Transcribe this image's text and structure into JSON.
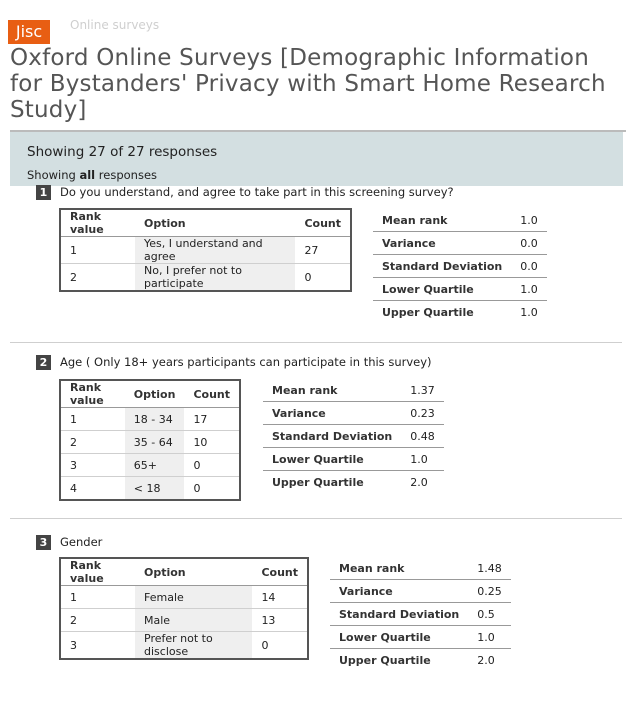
{
  "header": {
    "logo": "Jisc",
    "site_name": "Online surveys",
    "title": "Oxford Online Surveys [Demographic Information for Bystanders' Privacy with Smart Home Research Study]"
  },
  "summary": {
    "showing": "Showing 27 of 27 responses",
    "filter_prefix": "Showing ",
    "filter_bold": "all",
    "filter_suffix": " responses"
  },
  "questions": [
    {
      "num": "1",
      "text": "Do you understand, and agree to take part in this screening survey?",
      "headers": [
        "Rank value",
        "Option",
        "Count"
      ],
      "rows": [
        {
          "rank": "1",
          "option": "Yes, I understand and agree",
          "count": "27"
        },
        {
          "rank": "2",
          "option": "No, I prefer not to participate",
          "count": "0"
        }
      ],
      "stats": [
        {
          "label": "Mean rank",
          "value": "1.0"
        },
        {
          "label": "Variance",
          "value": "0.0"
        },
        {
          "label": "Standard Deviation",
          "value": "0.0"
        },
        {
          "label": "Lower Quartile",
          "value": "1.0"
        },
        {
          "label": "Upper Quartile",
          "value": "1.0"
        }
      ]
    },
    {
      "num": "2",
      "text": "Age ( Only 18+ years participants can participate in this survey)",
      "headers": [
        "Rank value",
        "Option",
        "Count"
      ],
      "rows": [
        {
          "rank": "1",
          "option": "18 - 34",
          "count": "17"
        },
        {
          "rank": "2",
          "option": "35 - 64",
          "count": "10"
        },
        {
          "rank": "3",
          "option": "65+",
          "count": "0"
        },
        {
          "rank": "4",
          "option": "< 18",
          "count": "0"
        }
      ],
      "stats": [
        {
          "label": "Mean rank",
          "value": "1.37"
        },
        {
          "label": "Variance",
          "value": "0.23"
        },
        {
          "label": "Standard Deviation",
          "value": "0.48"
        },
        {
          "label": "Lower Quartile",
          "value": "1.0"
        },
        {
          "label": "Upper Quartile",
          "value": "2.0"
        }
      ]
    },
    {
      "num": "3",
      "text": "Gender",
      "headers": [
        "Rank value",
        "Option",
        "Count"
      ],
      "rows": [
        {
          "rank": "1",
          "option": "Female",
          "count": "14"
        },
        {
          "rank": "2",
          "option": "Male",
          "count": "13"
        },
        {
          "rank": "3",
          "option": "Prefer not to disclose",
          "count": "0"
        }
      ],
      "stats": [
        {
          "label": "Mean rank",
          "value": "1.48"
        },
        {
          "label": "Variance",
          "value": "0.25"
        },
        {
          "label": "Standard Deviation",
          "value": "0.5"
        },
        {
          "label": "Lower Quartile",
          "value": "1.0"
        },
        {
          "label": "Upper Quartile",
          "value": "2.0"
        }
      ]
    }
  ]
}
